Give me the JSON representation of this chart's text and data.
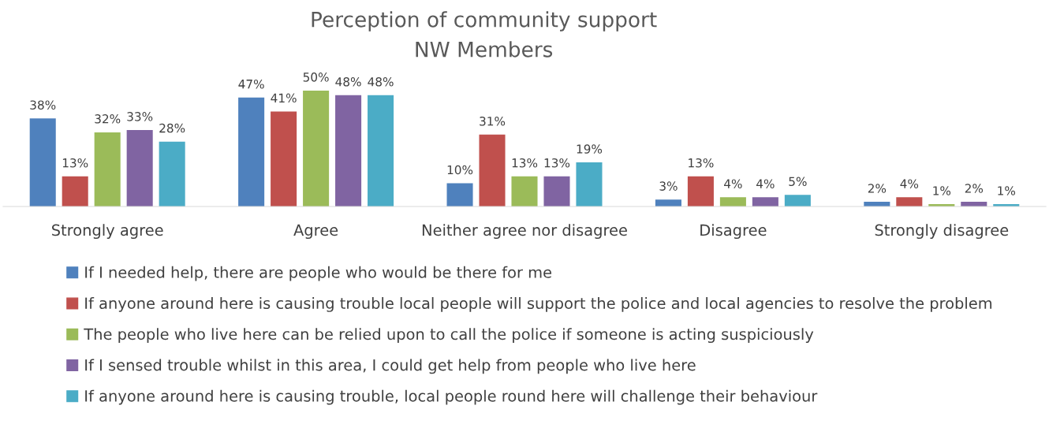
{
  "chart_data": {
    "type": "bar",
    "title": "Perception of community support",
    "subtitle": "NW Members",
    "categories": [
      "Strongly agree",
      "Agree",
      "Neither agree nor disagree",
      "Disagree",
      "Strongly disagree"
    ],
    "series": [
      {
        "name": "If I needed help, there are people who would be there for me",
        "color": "#4f81bd",
        "values": [
          38,
          47,
          10,
          3,
          2
        ],
        "value_labels": [
          "38%",
          "47%",
          "10%",
          "3%",
          "2%"
        ]
      },
      {
        "name": "If anyone around here is causing trouble local people will support the police and local agencies to resolve the problem",
        "color": "#c0504d",
        "values": [
          13,
          41,
          31,
          13,
          4
        ],
        "value_labels": [
          "13%",
          "41%",
          "31%",
          "13%",
          "4%"
        ]
      },
      {
        "name": "The people who live here can be relied upon to call the police if someone is acting suspiciously",
        "color": "#9bbb59",
        "values": [
          32,
          50,
          13,
          4,
          1
        ],
        "value_labels": [
          "32%",
          "50%",
          "13%",
          "4%",
          "1%"
        ]
      },
      {
        "name": "If I sensed trouble whilst in this area, I could get help from people who live here",
        "color": "#8064a2",
        "values": [
          33,
          48,
          13,
          4,
          2
        ],
        "value_labels": [
          "33%",
          "48%",
          "13%",
          "4%",
          "2%"
        ]
      },
      {
        "name": "If anyone around here is causing trouble, local people round here will challenge their behaviour",
        "color": "#4bacc6",
        "values": [
          28,
          48,
          19,
          5,
          1
        ],
        "value_labels": [
          "28%",
          "48%",
          "19%",
          "5%",
          "1%"
        ]
      }
    ],
    "legend": "bottom",
    "grid": false
  }
}
